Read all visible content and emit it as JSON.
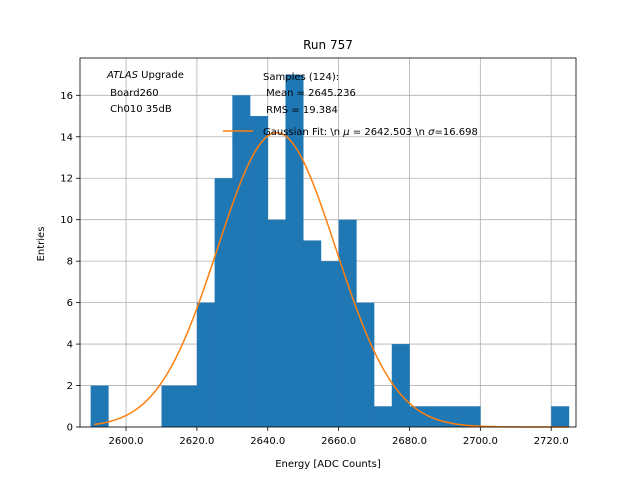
{
  "chart_data": {
    "type": "bar",
    "title": "Run 757",
    "xlabel": "Energy [ADC Counts]",
    "ylabel": "Entries",
    "xlim": [
      2587,
      2727
    ],
    "ylim": [
      0,
      17.8
    ],
    "grid": true,
    "bin_width": 5,
    "bins": [
      {
        "x": 2590,
        "y": 2
      },
      {
        "x": 2595,
        "y": 0
      },
      {
        "x": 2600,
        "y": 0
      },
      {
        "x": 2605,
        "y": 0
      },
      {
        "x": 2610,
        "y": 2
      },
      {
        "x": 2615,
        "y": 2
      },
      {
        "x": 2620,
        "y": 6
      },
      {
        "x": 2625,
        "y": 12
      },
      {
        "x": 2630,
        "y": 16
      },
      {
        "x": 2635,
        "y": 15
      },
      {
        "x": 2640,
        "y": 10
      },
      {
        "x": 2645,
        "y": 17
      },
      {
        "x": 2650,
        "y": 9
      },
      {
        "x": 2655,
        "y": 8
      },
      {
        "x": 2660,
        "y": 10
      },
      {
        "x": 2665,
        "y": 6
      },
      {
        "x": 2670,
        "y": 1
      },
      {
        "x": 2675,
        "y": 4
      },
      {
        "x": 2680,
        "y": 1
      },
      {
        "x": 2685,
        "y": 1
      },
      {
        "x": 2690,
        "y": 1
      },
      {
        "x": 2695,
        "y": 1
      },
      {
        "x": 2700,
        "y": 0
      },
      {
        "x": 2705,
        "y": 0
      },
      {
        "x": 2710,
        "y": 0
      },
      {
        "x": 2715,
        "y": 0
      },
      {
        "x": 2720,
        "y": 1
      }
    ],
    "x_ticks": [
      {
        "value": 2600,
        "label": "2600.0"
      },
      {
        "value": 2620,
        "label": "2620.0"
      },
      {
        "value": 2640,
        "label": "2640.0"
      },
      {
        "value": 2660,
        "label": "2660.0"
      },
      {
        "value": 2680,
        "label": "2680.0"
      },
      {
        "value": 2700,
        "label": "2700.0"
      },
      {
        "value": 2720,
        "label": "2720.0"
      }
    ],
    "y_ticks": [
      {
        "value": 0,
        "label": "0"
      },
      {
        "value": 2,
        "label": "2"
      },
      {
        "value": 4,
        "label": "4"
      },
      {
        "value": 6,
        "label": "6"
      },
      {
        "value": 8,
        "label": "8"
      },
      {
        "value": 10,
        "label": "10"
      },
      {
        "value": 12,
        "label": "12"
      },
      {
        "value": 14,
        "label": "14"
      },
      {
        "value": 16,
        "label": "16"
      }
    ],
    "gaussian_fit": {
      "mu": 2642.503,
      "sigma": 16.698,
      "amplitude": 14.2,
      "x_range": [
        2591,
        2725
      ],
      "color": "#ff7f0e"
    },
    "bar_color": "#1f77b4",
    "annotation_left": {
      "experiment": "ATLAS",
      "experiment_suffix": " Upgrade",
      "line2": " Board260",
      "line3": " Ch010 35dB"
    },
    "legend": {
      "placement": "top-right",
      "samples_line1": "Samples (124):",
      "samples_line2": " Mean = 2645.236",
      "samples_line3": " RMS = 19.384",
      "fit_prefix": "Gaussian Fit: \\n ",
      "fit_mu_symbol": "μ",
      "fit_mu_value": " = 2642.503 \\n ",
      "fit_sigma_symbol": "σ",
      "fit_sigma_value": "=16.698"
    }
  }
}
